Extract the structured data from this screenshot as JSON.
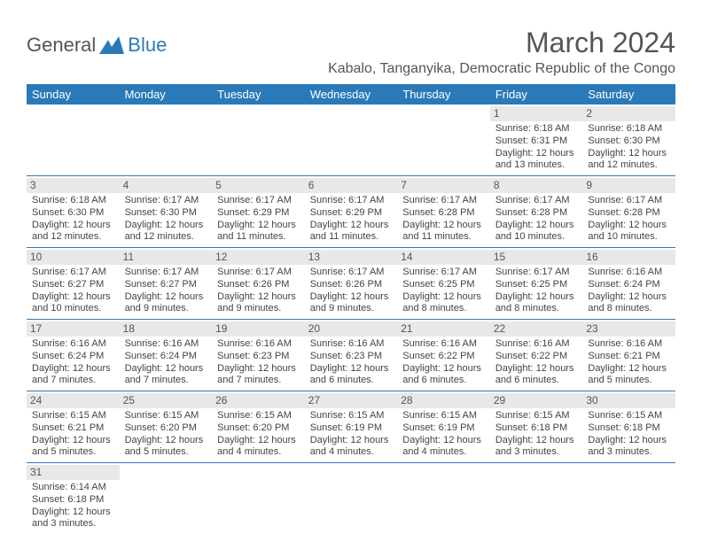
{
  "logo": {
    "general": "General",
    "blue": "Blue"
  },
  "title": "March 2024",
  "location": "Kabalo, Tanganyika, Democratic Republic of the Congo",
  "colors": {
    "header_bg": "#2a7ab9",
    "header_text": "#ffffff",
    "daynum_bg": "#e8e8e8",
    "text": "#444444",
    "title_text": "#555555",
    "border": "#2a7ab9",
    "logo_general": "#555555",
    "logo_blue": "#2a7ab9"
  },
  "dayHeaders": [
    "Sunday",
    "Monday",
    "Tuesday",
    "Wednesday",
    "Thursday",
    "Friday",
    "Saturday"
  ],
  "weeks": [
    [
      null,
      null,
      null,
      null,
      null,
      {
        "n": "1",
        "sr": "Sunrise: 6:18 AM",
        "ss": "Sunset: 6:31 PM",
        "dl": "Daylight: 12 hours and 13 minutes."
      },
      {
        "n": "2",
        "sr": "Sunrise: 6:18 AM",
        "ss": "Sunset: 6:30 PM",
        "dl": "Daylight: 12 hours and 12 minutes."
      }
    ],
    [
      {
        "n": "3",
        "sr": "Sunrise: 6:18 AM",
        "ss": "Sunset: 6:30 PM",
        "dl": "Daylight: 12 hours and 12 minutes."
      },
      {
        "n": "4",
        "sr": "Sunrise: 6:17 AM",
        "ss": "Sunset: 6:30 PM",
        "dl": "Daylight: 12 hours and 12 minutes."
      },
      {
        "n": "5",
        "sr": "Sunrise: 6:17 AM",
        "ss": "Sunset: 6:29 PM",
        "dl": "Daylight: 12 hours and 11 minutes."
      },
      {
        "n": "6",
        "sr": "Sunrise: 6:17 AM",
        "ss": "Sunset: 6:29 PM",
        "dl": "Daylight: 12 hours and 11 minutes."
      },
      {
        "n": "7",
        "sr": "Sunrise: 6:17 AM",
        "ss": "Sunset: 6:28 PM",
        "dl": "Daylight: 12 hours and 11 minutes."
      },
      {
        "n": "8",
        "sr": "Sunrise: 6:17 AM",
        "ss": "Sunset: 6:28 PM",
        "dl": "Daylight: 12 hours and 10 minutes."
      },
      {
        "n": "9",
        "sr": "Sunrise: 6:17 AM",
        "ss": "Sunset: 6:28 PM",
        "dl": "Daylight: 12 hours and 10 minutes."
      }
    ],
    [
      {
        "n": "10",
        "sr": "Sunrise: 6:17 AM",
        "ss": "Sunset: 6:27 PM",
        "dl": "Daylight: 12 hours and 10 minutes."
      },
      {
        "n": "11",
        "sr": "Sunrise: 6:17 AM",
        "ss": "Sunset: 6:27 PM",
        "dl": "Daylight: 12 hours and 9 minutes."
      },
      {
        "n": "12",
        "sr": "Sunrise: 6:17 AM",
        "ss": "Sunset: 6:26 PM",
        "dl": "Daylight: 12 hours and 9 minutes."
      },
      {
        "n": "13",
        "sr": "Sunrise: 6:17 AM",
        "ss": "Sunset: 6:26 PM",
        "dl": "Daylight: 12 hours and 9 minutes."
      },
      {
        "n": "14",
        "sr": "Sunrise: 6:17 AM",
        "ss": "Sunset: 6:25 PM",
        "dl": "Daylight: 12 hours and 8 minutes."
      },
      {
        "n": "15",
        "sr": "Sunrise: 6:17 AM",
        "ss": "Sunset: 6:25 PM",
        "dl": "Daylight: 12 hours and 8 minutes."
      },
      {
        "n": "16",
        "sr": "Sunrise: 6:16 AM",
        "ss": "Sunset: 6:24 PM",
        "dl": "Daylight: 12 hours and 8 minutes."
      }
    ],
    [
      {
        "n": "17",
        "sr": "Sunrise: 6:16 AM",
        "ss": "Sunset: 6:24 PM",
        "dl": "Daylight: 12 hours and 7 minutes."
      },
      {
        "n": "18",
        "sr": "Sunrise: 6:16 AM",
        "ss": "Sunset: 6:24 PM",
        "dl": "Daylight: 12 hours and 7 minutes."
      },
      {
        "n": "19",
        "sr": "Sunrise: 6:16 AM",
        "ss": "Sunset: 6:23 PM",
        "dl": "Daylight: 12 hours and 7 minutes."
      },
      {
        "n": "20",
        "sr": "Sunrise: 6:16 AM",
        "ss": "Sunset: 6:23 PM",
        "dl": "Daylight: 12 hours and 6 minutes."
      },
      {
        "n": "21",
        "sr": "Sunrise: 6:16 AM",
        "ss": "Sunset: 6:22 PM",
        "dl": "Daylight: 12 hours and 6 minutes."
      },
      {
        "n": "22",
        "sr": "Sunrise: 6:16 AM",
        "ss": "Sunset: 6:22 PM",
        "dl": "Daylight: 12 hours and 6 minutes."
      },
      {
        "n": "23",
        "sr": "Sunrise: 6:16 AM",
        "ss": "Sunset: 6:21 PM",
        "dl": "Daylight: 12 hours and 5 minutes."
      }
    ],
    [
      {
        "n": "24",
        "sr": "Sunrise: 6:15 AM",
        "ss": "Sunset: 6:21 PM",
        "dl": "Daylight: 12 hours and 5 minutes."
      },
      {
        "n": "25",
        "sr": "Sunrise: 6:15 AM",
        "ss": "Sunset: 6:20 PM",
        "dl": "Daylight: 12 hours and 5 minutes."
      },
      {
        "n": "26",
        "sr": "Sunrise: 6:15 AM",
        "ss": "Sunset: 6:20 PM",
        "dl": "Daylight: 12 hours and 4 minutes."
      },
      {
        "n": "27",
        "sr": "Sunrise: 6:15 AM",
        "ss": "Sunset: 6:19 PM",
        "dl": "Daylight: 12 hours and 4 minutes."
      },
      {
        "n": "28",
        "sr": "Sunrise: 6:15 AM",
        "ss": "Sunset: 6:19 PM",
        "dl": "Daylight: 12 hours and 4 minutes."
      },
      {
        "n": "29",
        "sr": "Sunrise: 6:15 AM",
        "ss": "Sunset: 6:18 PM",
        "dl": "Daylight: 12 hours and 3 minutes."
      },
      {
        "n": "30",
        "sr": "Sunrise: 6:15 AM",
        "ss": "Sunset: 6:18 PM",
        "dl": "Daylight: 12 hours and 3 minutes."
      }
    ],
    [
      {
        "n": "31",
        "sr": "Sunrise: 6:14 AM",
        "ss": "Sunset: 6:18 PM",
        "dl": "Daylight: 12 hours and 3 minutes."
      },
      null,
      null,
      null,
      null,
      null,
      null
    ]
  ]
}
